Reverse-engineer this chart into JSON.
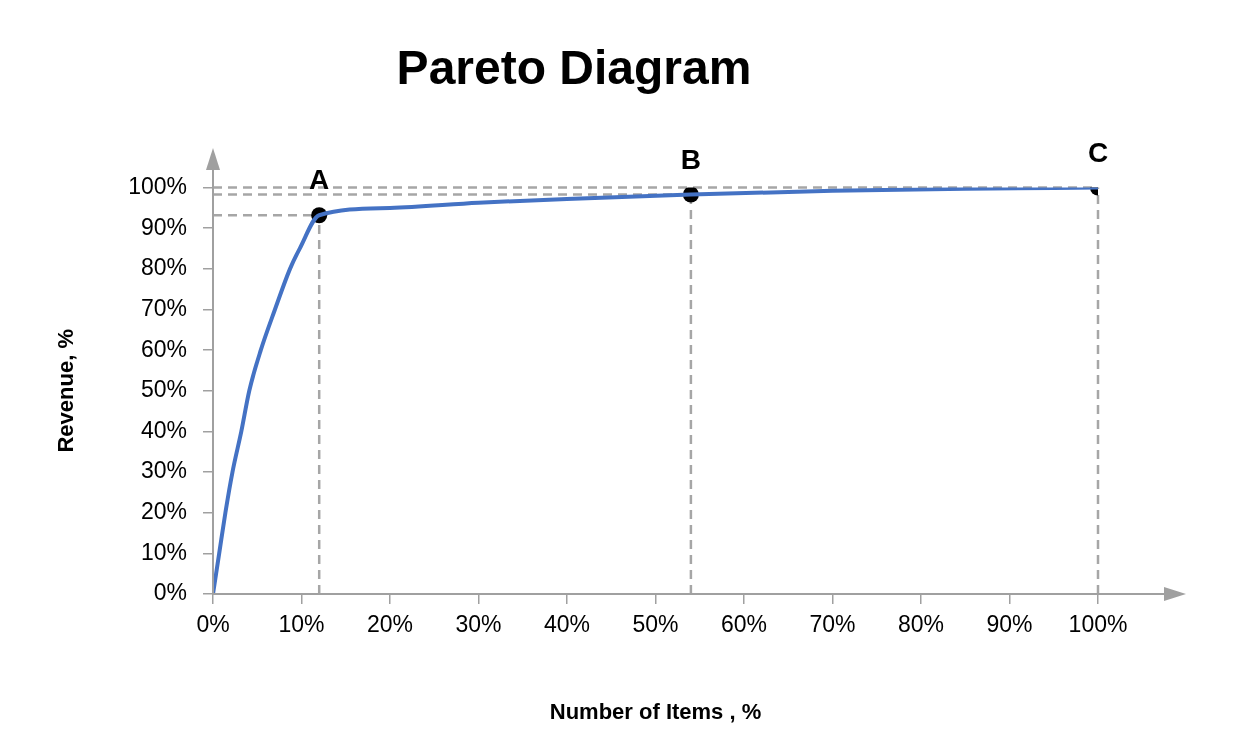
{
  "chart_data": {
    "type": "line",
    "title": "Pareto Diagram",
    "xlabel": "Number of Items , %",
    "ylabel": "Revenue, %",
    "xlim": [
      0,
      100
    ],
    "xticks": [
      {
        "value": 0,
        "label": "0%"
      },
      {
        "value": 10,
        "label": "10%"
      },
      {
        "value": 20,
        "label": "20%"
      },
      {
        "value": 30,
        "label": "30%"
      },
      {
        "value": 40,
        "label": "40%"
      },
      {
        "value": 50,
        "label": "50%"
      },
      {
        "value": 60,
        "label": "60%"
      },
      {
        "value": 70,
        "label": "70%"
      },
      {
        "value": 80,
        "label": "80%"
      },
      {
        "value": 90,
        "label": "90%"
      },
      {
        "value": 100,
        "label": "100%"
      }
    ],
    "ylim": [
      0,
      100
    ],
    "yticks": [
      {
        "value": 0,
        "label": "0%"
      },
      {
        "value": 10,
        "label": "10%"
      },
      {
        "value": 20,
        "label": "20%"
      },
      {
        "value": 30,
        "label": "30%"
      },
      {
        "value": 40,
        "label": "40%"
      },
      {
        "value": 50,
        "label": "50%"
      },
      {
        "value": 60,
        "label": "60%"
      },
      {
        "value": 70,
        "label": "70%"
      },
      {
        "value": 80,
        "label": "80%"
      },
      {
        "value": 90,
        "label": "90%"
      },
      {
        "value": 100,
        "label": "100%"
      }
    ],
    "grid": false,
    "legend": false,
    "series": [
      {
        "type": "line",
        "color": "#4472c4",
        "marker": "none",
        "x": [
          0,
          0.7,
          1.4,
          2.2,
          3.2,
          4.1,
          5.4,
          7,
          8.7,
          9.8,
          12,
          20,
          30,
          40,
          54,
          70,
          85,
          100
        ],
        "values": [
          0,
          10,
          20,
          30,
          40,
          50,
          60,
          70,
          80,
          85,
          93.2,
          95,
          96.3,
          97.2,
          98.3,
          99.2,
          99.7,
          100
        ]
      },
      {
        "type": "scatter",
        "color": "#000000",
        "marker": "circle",
        "x": [
          12,
          54,
          100
        ],
        "values": [
          93.2,
          98.3,
          100
        ]
      }
    ],
    "ref_lines": [
      {
        "axis": "x",
        "value": 12,
        "color": "#a6a6a6",
        "line_style": "dashed"
      },
      {
        "axis": "x",
        "value": 54,
        "color": "#a6a6a6",
        "line_style": "dashed"
      },
      {
        "axis": "x",
        "value": 100,
        "color": "#a6a6a6",
        "line_style": "dashed"
      },
      {
        "axis": "y",
        "value": 93.2,
        "color": "#a6a6a6",
        "line_style": "dashed"
      },
      {
        "axis": "y",
        "value": 98.3,
        "color": "#a6a6a6",
        "line_style": "dashed"
      },
      {
        "axis": "y",
        "value": 100,
        "color": "#a6a6a6",
        "line_style": "dashed"
      }
    ],
    "annotations": [
      {
        "text": "A",
        "x": 12,
        "y": 93.2
      },
      {
        "text": "B",
        "x": 54,
        "y": 98.3
      },
      {
        "text": "C",
        "x": 100,
        "y": 100
      }
    ]
  }
}
